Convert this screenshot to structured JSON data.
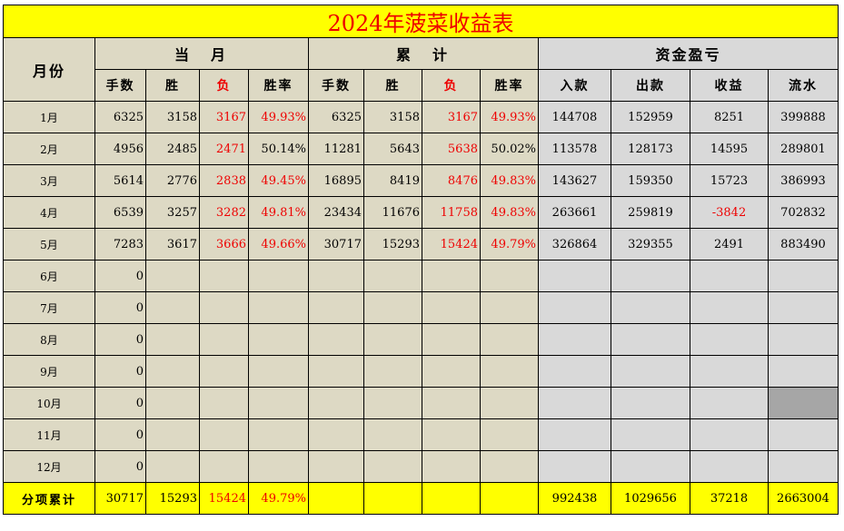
{
  "title": "2024年菠菜收益表",
  "headers": {
    "month": "月份",
    "current": "当　月",
    "cumulative": "累　计",
    "funds": "资金盈亏",
    "sub": [
      "手数",
      "胜",
      "负",
      "胜率",
      "手数",
      "胜",
      "负",
      "胜率",
      "入款",
      "出款",
      "收益",
      "流水"
    ]
  },
  "rows": [
    {
      "m": "1月",
      "c": [
        "6325",
        "3158",
        "3167",
        "49.93%",
        "6325",
        "3158",
        "3167",
        "49.93%",
        "144708",
        "152959",
        "8251",
        "399888"
      ]
    },
    {
      "m": "2月",
      "c": [
        "4956",
        "2485",
        "2471",
        "50.14%",
        "11281",
        "5643",
        "5638",
        "50.02%",
        "113578",
        "128173",
        "14595",
        "289801"
      ]
    },
    {
      "m": "3月",
      "c": [
        "5614",
        "2776",
        "2838",
        "49.45%",
        "16895",
        "8419",
        "8476",
        "49.83%",
        "143627",
        "159350",
        "15723",
        "386993"
      ]
    },
    {
      "m": "4月",
      "c": [
        "6539",
        "3257",
        "3282",
        "49.81%",
        "23434",
        "11676",
        "11758",
        "49.83%",
        "263661",
        "259819",
        "-3842",
        "702832"
      ]
    },
    {
      "m": "5月",
      "c": [
        "7283",
        "3617",
        "3666",
        "49.66%",
        "30717",
        "15293",
        "15424",
        "49.79%",
        "326864",
        "329355",
        "2491",
        "883490"
      ]
    },
    {
      "m": "6月",
      "c": [
        "0",
        "",
        "",
        "",
        "",
        "",
        "",
        "",
        "",
        "",
        "",
        ""
      ]
    },
    {
      "m": "7月",
      "c": [
        "0",
        "",
        "",
        "",
        "",
        "",
        "",
        "",
        "",
        "",
        "",
        ""
      ]
    },
    {
      "m": "8月",
      "c": [
        "0",
        "",
        "",
        "",
        "",
        "",
        "",
        "",
        "",
        "",
        "",
        ""
      ]
    },
    {
      "m": "9月",
      "c": [
        "0",
        "",
        "",
        "",
        "",
        "",
        "",
        "",
        "",
        "",
        "",
        ""
      ]
    },
    {
      "m": "10月",
      "c": [
        "0",
        "",
        "",
        "",
        "",
        "",
        "",
        "",
        "",
        "",
        "",
        ""
      ]
    },
    {
      "m": "11月",
      "c": [
        "0",
        "",
        "",
        "",
        "",
        "",
        "",
        "",
        "",
        "",
        "",
        ""
      ]
    },
    {
      "m": "12月",
      "c": [
        "0",
        "",
        "",
        "",
        "",
        "",
        "",
        "",
        "",
        "",
        "",
        ""
      ]
    }
  ],
  "total": {
    "m": "分项累计",
    "c": [
      "30717",
      "15293",
      "15424",
      "49.79%",
      "",
      "",
      "",
      "",
      "992438",
      "1029656",
      "37218",
      "2663004"
    ]
  },
  "colors": {
    "beige": "#ddd9c4",
    "gray": "#d9d9d9",
    "yellow": "#ffff00",
    "red": "#ee0000",
    "selected": "#a6a6a6"
  }
}
